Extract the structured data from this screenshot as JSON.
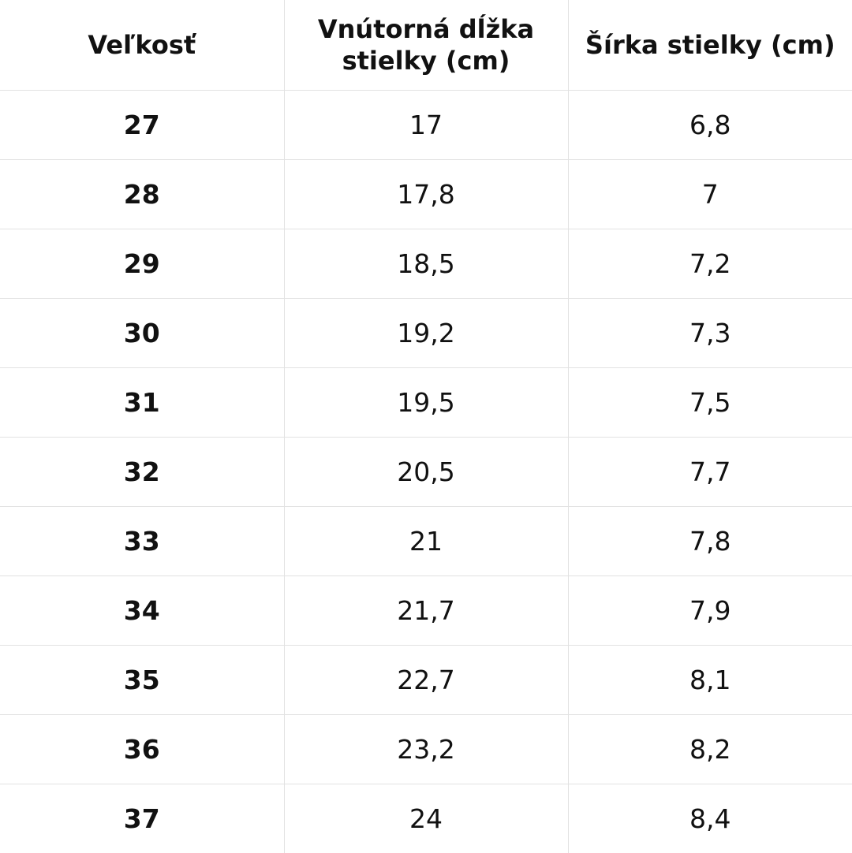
{
  "table": {
    "headers": [
      "Veľkosť",
      "Vnútorná dĺžka stielky (cm)",
      "Šírka stielky (cm)"
    ],
    "rows": [
      [
        "27",
        "17",
        "6,8"
      ],
      [
        "28",
        "17,8",
        "7"
      ],
      [
        "29",
        "18,5",
        "7,2"
      ],
      [
        "30",
        "19,2",
        "7,3"
      ],
      [
        "31",
        "19,5",
        "7,5"
      ],
      [
        "32",
        "20,5",
        "7,7"
      ],
      [
        "33",
        "21",
        "7,8"
      ],
      [
        "34",
        "21,7",
        "7,9"
      ],
      [
        "35",
        "22,7",
        "8,1"
      ],
      [
        "36",
        "23,2",
        "8,2"
      ],
      [
        "37",
        "24",
        "8,4"
      ]
    ],
    "border_color": "#e2e2e2",
    "text_color": "#111111"
  }
}
